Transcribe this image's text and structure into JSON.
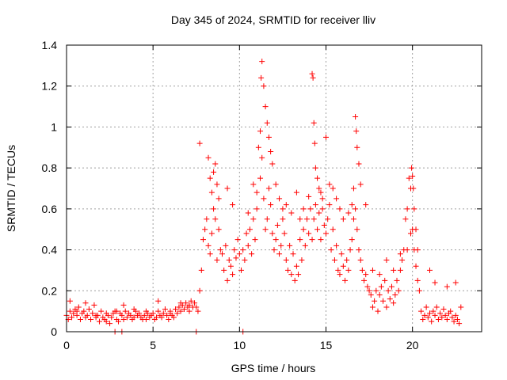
{
  "chart_data": {
    "type": "scatter",
    "title": "Day 345 of 2024, SRMTID for receiver lliv",
    "xlabel": "GPS time / hours",
    "ylabel": "SRMTID / TECUs",
    "xlim": [
      0,
      24
    ],
    "ylim": [
      0,
      1.4
    ],
    "xticks": [
      0,
      5,
      10,
      15,
      20
    ],
    "xtick_labels": [
      "0",
      "5",
      "10",
      "15",
      "20"
    ],
    "yticks": [
      0,
      0.2,
      0.4,
      0.6,
      0.8,
      1.0,
      1.2,
      1.4
    ],
    "ytick_labels": [
      "0",
      "0.2",
      "0.4",
      "0.6",
      "0.8",
      "1",
      "1.2",
      "1.4"
    ],
    "grid": true,
    "marker": "plus",
    "marker_color": "#ff0000",
    "series": [
      {
        "name": "SRMTID",
        "x": [
          0.0,
          0.1,
          0.2,
          0.3,
          0.4,
          0.5,
          0.6,
          0.7,
          0.8,
          0.9,
          1.0,
          1.1,
          1.2,
          1.3,
          1.4,
          1.5,
          1.6,
          1.7,
          1.8,
          1.9,
          2.0,
          2.1,
          2.2,
          2.3,
          2.4,
          2.5,
          2.6,
          2.7,
          2.8,
          2.9,
          3.0,
          3.1,
          3.2,
          3.3,
          3.4,
          3.5,
          3.6,
          3.7,
          3.8,
          3.9,
          4.0,
          4.1,
          4.2,
          4.3,
          4.4,
          4.5,
          4.6,
          4.7,
          4.8,
          4.9,
          5.0,
          5.1,
          5.2,
          5.3,
          5.4,
          5.5,
          5.6,
          5.7,
          5.8,
          5.9,
          6.0,
          6.1,
          6.2,
          6.3,
          6.4,
          6.5,
          6.6,
          6.7,
          6.8,
          6.9,
          7.0,
          7.1,
          7.2,
          7.3,
          7.4,
          7.5,
          7.6,
          7.7,
          7.8,
          7.9,
          8.0,
          8.1,
          8.2,
          8.3,
          8.4,
          8.5,
          8.6,
          8.7,
          8.8,
          8.9,
          9.0,
          9.1,
          9.2,
          9.3,
          9.4,
          9.5,
          9.6,
          9.7,
          9.8,
          9.9,
          10.0,
          10.1,
          10.2,
          10.3,
          10.4,
          10.5,
          10.6,
          10.7,
          10.8,
          10.9,
          11.0,
          11.1,
          11.2,
          11.3,
          11.4,
          11.5,
          11.6,
          11.7,
          11.8,
          11.9,
          12.0,
          12.1,
          12.2,
          12.3,
          12.4,
          12.5,
          12.6,
          12.7,
          12.8,
          12.9,
          13.0,
          13.1,
          13.2,
          13.3,
          13.4,
          13.5,
          13.6,
          13.7,
          13.8,
          13.9,
          14.0,
          14.1,
          14.2,
          14.3,
          14.4,
          14.5,
          14.6,
          14.7,
          14.8,
          14.9,
          15.0,
          15.1,
          15.2,
          15.3,
          15.4,
          15.5,
          15.6,
          15.7,
          15.8,
          15.9,
          16.0,
          16.1,
          16.2,
          16.3,
          16.4,
          16.5,
          16.6,
          16.7,
          16.8,
          16.9,
          17.0,
          17.1,
          17.2,
          17.3,
          17.4,
          17.5,
          17.6,
          17.7,
          17.8,
          17.9,
          18.0,
          18.1,
          18.2,
          18.3,
          18.4,
          18.5,
          18.6,
          18.7,
          18.8,
          18.9,
          19.0,
          19.1,
          19.2,
          19.3,
          19.4,
          19.5,
          19.6,
          19.7,
          19.8,
          19.9,
          20.0,
          20.1,
          20.2,
          20.3,
          20.4,
          20.5,
          20.6,
          20.7,
          20.8,
          20.9,
          21.0,
          21.1,
          21.2,
          21.3,
          21.4,
          21.5,
          21.6,
          21.7,
          21.8,
          21.9,
          22.0,
          22.1,
          22.2,
          22.3,
          22.4,
          22.5,
          22.6,
          22.7,
          22.8,
          0.2,
          0.6,
          1.1,
          1.7,
          2.3,
          2.9,
          3.3,
          3.9,
          4.6,
          5.3,
          6.0,
          6.6,
          7.1,
          7.7,
          8.2,
          8.3,
          8.4,
          8.5,
          8.6,
          8.7,
          8.8,
          9.3,
          9.6,
          10.5,
          10.8,
          11.0,
          11.2,
          11.25,
          11.3,
          11.4,
          11.5,
          11.6,
          11.7,
          11.8,
          11.9,
          12.1,
          12.3,
          12.5,
          12.7,
          13.0,
          13.3,
          13.5,
          13.7,
          14.0,
          14.2,
          14.25,
          14.3,
          14.35,
          14.4,
          14.5,
          14.6,
          14.7,
          14.8,
          15.0,
          15.2,
          15.4,
          15.6,
          15.8,
          16.0,
          16.3,
          16.5,
          16.6,
          16.7,
          16.75,
          16.8,
          16.9,
          17.0,
          17.3,
          17.7,
          18.1,
          18.5,
          18.9,
          19.3,
          19.7,
          19.9,
          19.95,
          20.0,
          20.05,
          20.1,
          20.2,
          20.3,
          21.0,
          21.3,
          22.0,
          22.5,
          2.8,
          3.2,
          7.5,
          10.2
        ],
        "y": [
          0.08,
          0.06,
          0.1,
          0.07,
          0.09,
          0.11,
          0.08,
          0.12,
          0.06,
          0.09,
          0.1,
          0.07,
          0.08,
          0.11,
          0.06,
          0.09,
          0.13,
          0.07,
          0.08,
          0.05,
          0.1,
          0.07,
          0.06,
          0.09,
          0.08,
          0.04,
          0.07,
          0.09,
          0.1,
          0.06,
          0.05,
          0.09,
          0.08,
          0.06,
          0.1,
          0.07,
          0.09,
          0.08,
          0.06,
          0.07,
          0.1,
          0.08,
          0.09,
          0.07,
          0.06,
          0.08,
          0.1,
          0.09,
          0.07,
          0.08,
          0.09,
          0.06,
          0.07,
          0.1,
          0.08,
          0.07,
          0.09,
          0.11,
          0.08,
          0.06,
          0.1,
          0.08,
          0.07,
          0.11,
          0.09,
          0.12,
          0.1,
          0.13,
          0.11,
          0.14,
          0.12,
          0.13,
          0.15,
          0.12,
          0.14,
          0.12,
          0.1,
          0.2,
          0.3,
          0.45,
          0.5,
          0.55,
          0.42,
          0.38,
          0.48,
          0.6,
          0.55,
          0.35,
          0.5,
          0.4,
          0.38,
          0.3,
          0.42,
          0.25,
          0.35,
          0.32,
          0.28,
          0.4,
          0.36,
          0.45,
          0.38,
          0.3,
          0.4,
          0.35,
          0.48,
          0.42,
          0.5,
          0.38,
          0.55,
          0.45,
          0.6,
          0.9,
          0.75,
          0.85,
          0.65,
          0.5,
          0.55,
          0.7,
          0.62,
          0.48,
          0.4,
          0.45,
          0.52,
          0.38,
          0.42,
          0.55,
          0.48,
          0.35,
          0.3,
          0.42,
          0.28,
          0.38,
          0.25,
          0.32,
          0.28,
          0.45,
          0.35,
          0.5,
          0.42,
          0.55,
          0.48,
          0.6,
          0.45,
          0.55,
          0.62,
          0.5,
          0.58,
          0.45,
          0.65,
          0.52,
          0.48,
          0.55,
          0.62,
          0.4,
          0.5,
          0.35,
          0.42,
          0.3,
          0.28,
          0.38,
          0.32,
          0.25,
          0.35,
          0.3,
          0.4,
          0.45,
          0.55,
          0.6,
          0.5,
          0.4,
          0.35,
          0.3,
          0.25,
          0.28,
          0.22,
          0.2,
          0.18,
          0.12,
          0.15,
          0.2,
          0.1,
          0.18,
          0.22,
          0.15,
          0.25,
          0.12,
          0.2,
          0.16,
          0.22,
          0.14,
          0.18,
          0.25,
          0.2,
          0.3,
          0.35,
          0.4,
          0.55,
          0.6,
          0.75,
          0.7,
          0.5,
          0.4,
          0.32,
          0.25,
          0.2,
          0.1,
          0.06,
          0.08,
          0.12,
          0.07,
          0.09,
          0.05,
          0.1,
          0.08,
          0.12,
          0.06,
          0.09,
          0.07,
          0.11,
          0.08,
          0.06,
          0.09,
          0.1,
          0.07,
          0.05,
          0.08,
          0.06,
          0.04,
          0.12,
          0.15,
          0.1,
          0.14,
          0.08,
          0.05,
          0.1,
          0.13,
          0.11,
          0.06,
          0.15,
          0.09,
          0.14,
          0.1,
          0.92,
          0.85,
          0.75,
          0.68,
          0.78,
          0.82,
          0.72,
          0.65,
          0.7,
          0.62,
          0.58,
          0.72,
          0.68,
          0.98,
          1.24,
          1.32,
          1.2,
          1.1,
          1.02,
          0.95,
          0.88,
          0.82,
          0.72,
          0.65,
          0.6,
          0.62,
          0.58,
          0.68,
          0.55,
          0.6,
          0.66,
          1.26,
          1.24,
          1.02,
          0.92,
          0.8,
          0.75,
          0.7,
          0.68,
          0.6,
          0.95,
          0.72,
          0.7,
          0.65,
          0.6,
          0.55,
          0.58,
          0.62,
          0.7,
          1.05,
          0.98,
          0.9,
          0.82,
          0.72,
          0.62,
          0.3,
          0.28,
          0.35,
          0.3,
          0.38,
          0.4,
          0.48,
          0.8,
          0.76,
          0.7,
          0.6,
          0.5,
          0.4,
          0.3,
          0.24,
          0.22,
          0.24,
          0.0,
          0.0,
          0.0,
          0.0
        ]
      }
    ]
  }
}
